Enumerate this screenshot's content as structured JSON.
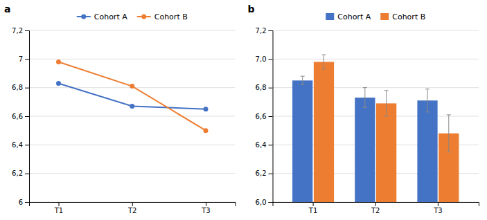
{
  "chart_data": [
    {
      "type": "line",
      "title": "a",
      "categories": [
        "T1",
        "T2",
        "T3"
      ],
      "series": [
        {
          "name": "Cohort A",
          "color": "#4472C4",
          "marker": "circle",
          "values": [
            6.83,
            6.67,
            6.65
          ]
        },
        {
          "name": "Cohort B",
          "color": "#ED7D31",
          "marker": "circle",
          "values": [
            6.98,
            6.81,
            6.5
          ]
        }
      ],
      "ylim": [
        6.0,
        7.2
      ],
      "yticks": [
        6,
        {
          "value": 6.2,
          "label": "6,2"
        },
        {
          "value": 6.4,
          "label": "6,4"
        },
        {
          "value": 6.6,
          "label": "6,6"
        },
        {
          "value": 6.8,
          "label": "6,8"
        },
        7,
        {
          "value": 7.2,
          "label": "7,2"
        }
      ],
      "grid": true,
      "legend": "top"
    },
    {
      "type": "bar",
      "title": "b",
      "categories": [
        "T1",
        "T2",
        "T3"
      ],
      "series": [
        {
          "name": "Cohort A",
          "color": "#4472C4",
          "values": [
            6.85,
            6.73,
            6.71
          ],
          "errors": [
            0.03,
            0.07,
            0.08
          ]
        },
        {
          "name": "Cohort B",
          "color": "#ED7D31",
          "values": [
            6.98,
            6.69,
            6.48
          ],
          "errors": [
            0.05,
            0.09,
            0.13
          ]
        }
      ],
      "ylim": [
        6.0,
        7.2
      ],
      "yticks": [
        {
          "value": 6.0,
          "label": "6,0"
        },
        {
          "value": 6.2,
          "label": "6,2"
        },
        {
          "value": 6.4,
          "label": "6,4"
        },
        {
          "value": 6.6,
          "label": "6,6"
        },
        {
          "value": 6.8,
          "label": "6,8"
        },
        {
          "value": 7.0,
          "label": "7,0"
        },
        {
          "value": 7.2,
          "label": "7,2"
        }
      ],
      "grid": true,
      "legend": "top"
    }
  ]
}
